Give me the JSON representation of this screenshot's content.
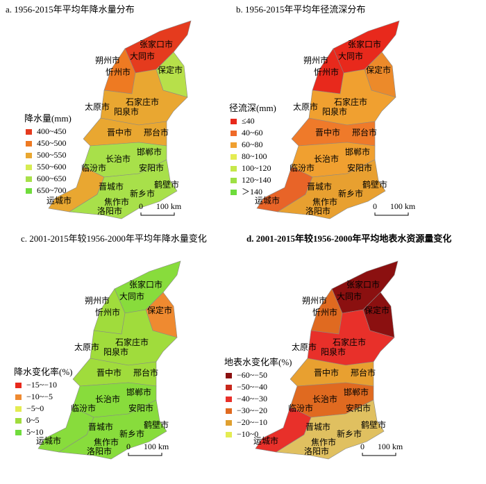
{
  "panels": [
    {
      "title": "a. 1956-2015年平均年降水量分布",
      "legend": {
        "title": "降水量(mm)",
        "items": [
          {
            "label": "400~450",
            "color": "#e53b1e"
          },
          {
            "label": "450~500",
            "color": "#ee7a22"
          },
          {
            "label": "500~550",
            "color": "#e9a731"
          },
          {
            "label": "550~600",
            "color": "#d6ec52"
          },
          {
            "label": "600~650",
            "color": "#a8e04a"
          },
          {
            "label": "650~700",
            "color": "#70dc3c"
          }
        ]
      },
      "scale": {
        "start": "0",
        "end": "100 km"
      },
      "cities": [
        "张家口市",
        "大同市",
        "朔州市",
        "忻州市",
        "保定市",
        "太原市",
        "石家庄市",
        "阳泉市",
        "晋中市",
        "邢台市",
        "邯郸市",
        "长治市",
        "临汾市",
        "安阳市",
        "鹤壁市",
        "晋城市",
        "新乡市",
        "运城市",
        "焦作市",
        "洛阳市"
      ]
    },
    {
      "title": "b. 1956-2015年平均年径流深分布",
      "legend": {
        "title": "径流深(mm)",
        "items": [
          {
            "label": "≤40",
            "color": "#e8291c"
          },
          {
            "label": "40~60",
            "color": "#ef6a28"
          },
          {
            "label": "60~80",
            "color": "#f0a030"
          },
          {
            "label": "80~100",
            "color": "#e4ec52"
          },
          {
            "label": "100~120",
            "color": "#c6e84a"
          },
          {
            "label": "120~140",
            "color": "#9ee044"
          },
          {
            "label": "＞140",
            "color": "#6edc3c"
          }
        ]
      },
      "scale": {
        "start": "0",
        "end": "100 km"
      },
      "cities": [
        "张家口市",
        "大同市",
        "朔州市",
        "忻州市",
        "保定市",
        "太原市",
        "石家庄市",
        "阳泉市",
        "晋中市",
        "邢台市",
        "邯郸市",
        "长治市",
        "临汾市",
        "安阳市",
        "鹤壁市",
        "晋城市",
        "新乡市",
        "运城市",
        "焦作市",
        "洛阳市"
      ]
    },
    {
      "title": "c. 2001-2015年较1956-2000年平均年降水量变化",
      "legend": {
        "title": "降水变化率(%)",
        "items": [
          {
            "label": "−15~−10",
            "color": "#e8291c"
          },
          {
            "label": "−10~−5",
            "color": "#ef8a30"
          },
          {
            "label": "−5~0",
            "color": "#e4ec52"
          },
          {
            "label": "0~5",
            "color": "#a0dc3c"
          },
          {
            "label": "5~10",
            "color": "#70dc3c"
          }
        ]
      },
      "scale": {
        "start": "0",
        "end": "100 km"
      },
      "cities": [
        "张家口市",
        "大同市",
        "朔州市",
        "忻州市",
        "保定市",
        "太原市",
        "石家庄市",
        "阳泉市",
        "晋中市",
        "邢台市",
        "邯郸市",
        "长治市",
        "临汾市",
        "安阳市",
        "鹤壁市",
        "晋城市",
        "新乡市",
        "运城市",
        "焦作市",
        "洛阳市"
      ]
    },
    {
      "title": "d. 2001-2015年较1956-2000年平均地表水资源量变化",
      "legend": {
        "title": "地表水变化率(%)",
        "items": [
          {
            "label": "−60~−50",
            "color": "#8b1010"
          },
          {
            "label": "−50~−40",
            "color": "#c8281c"
          },
          {
            "label": "−40~−30",
            "color": "#e8302a"
          },
          {
            "label": "−30~−20",
            "color": "#e06a20"
          },
          {
            "label": "−20~−10",
            "color": "#e0a030"
          },
          {
            "label": "−10~0",
            "color": "#e4ec52"
          }
        ]
      },
      "scale": {
        "start": "0",
        "end": "100 km"
      },
      "cities": [
        "张家口市",
        "大同市",
        "朔州市",
        "忻州市",
        "保定市",
        "太原市",
        "石家庄市",
        "阳泉市",
        "晋中市",
        "邢台市",
        "邯郸市",
        "长治市",
        "临汾市",
        "安阳市",
        "鹤壁市",
        "晋城市",
        "新乡市",
        "运城市",
        "焦作市",
        "洛阳市"
      ]
    }
  ]
}
